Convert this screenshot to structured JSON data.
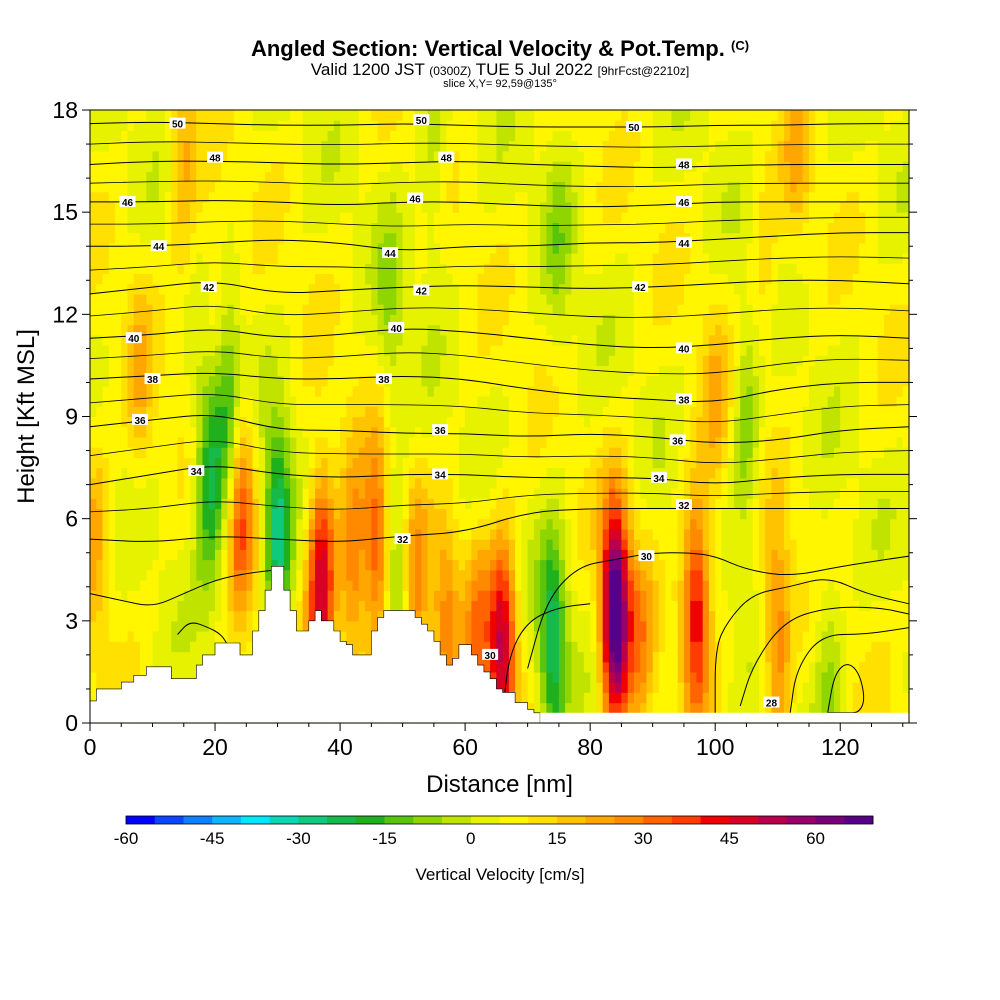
{
  "title": "Angled Section: Vertical Velocity & Pot.Temp.",
  "title_unit": "(C)",
  "subtitle_a": "Valid 1200 JST",
  "subtitle_utc": "(0300Z)",
  "subtitle_b": "TUE 5 Jul 2022",
  "subtitle_fcst": "[9hrFcst@2210z]",
  "slice_label": "slice X,Y= 92,59@135°",
  "colors": {
    "background": "#ffffff",
    "terrain": "#ffffff",
    "contour": "#000000"
  },
  "chart_data": {
    "type": "heatmap",
    "xlabel": "Distance [nm]",
    "ylabel": "Height [Kft MSL]",
    "xlim": [
      0,
      131
    ],
    "ylim": [
      0,
      18
    ],
    "xticks": [
      0,
      20,
      40,
      60,
      80,
      100,
      120
    ],
    "yticks": [
      0,
      3,
      6,
      9,
      12,
      15,
      18
    ],
    "colorbar": {
      "label": "Vertical Velocity [cm/s]",
      "range": [
        -60,
        70
      ],
      "step": 5,
      "ticks": [
        -60,
        -45,
        -30,
        -15,
        0,
        15,
        30,
        45,
        60
      ],
      "colors": [
        "#0000ff",
        "#0a46ff",
        "#0d7fff",
        "#0db6ff",
        "#00e8ff",
        "#0bd7b5",
        "#0fc97d",
        "#16b94a",
        "#20b01e",
        "#58c40c",
        "#8fd500",
        "#c0e400",
        "#e6f200",
        "#fff600",
        "#ffe000",
        "#ffc300",
        "#ffa600",
        "#ff8a00",
        "#ff6400",
        "#ff3c00",
        "#f00000",
        "#d80024",
        "#b8004c",
        "#98006c",
        "#78007c",
        "#580088"
      ]
    },
    "vertical_velocity_cores": [
      {
        "x": 1,
        "z": 5.5,
        "w": 15
      },
      {
        "x": 8,
        "z": 10,
        "w": 12
      },
      {
        "x": 15,
        "z": 16.5,
        "w": 15
      },
      {
        "x": 20,
        "z": 12,
        "w": 12
      },
      {
        "x": 19,
        "z": 7.5,
        "w": -30
      },
      {
        "x": 22,
        "z": 9,
        "w": -25
      },
      {
        "x": 24,
        "z": 6.5,
        "w": 30
      },
      {
        "x": 30,
        "z": 5.5,
        "w": -35
      },
      {
        "x": 37,
        "z": 4.2,
        "w": 45
      },
      {
        "x": 42,
        "z": 4.5,
        "w": 25
      },
      {
        "x": 46,
        "z": 5,
        "w": 30
      },
      {
        "x": 49,
        "z": 4,
        "w": -20
      },
      {
        "x": 52,
        "z": 3.8,
        "w": 20
      },
      {
        "x": 57,
        "z": 2.8,
        "w": 20
      },
      {
        "x": 62,
        "z": 2.8,
        "w": 20
      },
      {
        "x": 66,
        "z": 2.2,
        "w": 45
      },
      {
        "x": 74,
        "z": 2.3,
        "w": -30
      },
      {
        "x": 84,
        "z": 3.2,
        "w": 70
      },
      {
        "x": 88,
        "z": 2.2,
        "w": 18
      },
      {
        "x": 97,
        "z": 3.5,
        "w": 40
      },
      {
        "x": 105,
        "z": 8.5,
        "w": -15
      },
      {
        "x": 110,
        "z": 2.5,
        "w": 25
      },
      {
        "x": 118,
        "z": 2,
        "w": -12
      },
      {
        "x": 100,
        "z": 9,
        "w": 12
      },
      {
        "x": 108,
        "z": 13,
        "w": 8
      },
      {
        "x": 113,
        "z": 17,
        "w": 12
      },
      {
        "x": 55,
        "z": 16.5,
        "w": -10
      },
      {
        "x": 75,
        "z": 14,
        "w": -10
      },
      {
        "x": 48,
        "z": 12,
        "w": -10
      }
    ],
    "terrain_profile": {
      "x": [
        0,
        1,
        2,
        4,
        5,
        7,
        9,
        12,
        13,
        16,
        17,
        18,
        20,
        23,
        24,
        26,
        27,
        28,
        29,
        30,
        31,
        32,
        33,
        34,
        35,
        36,
        37,
        38,
        39,
        40,
        41,
        42,
        43,
        44,
        45,
        46,
        47,
        48,
        49,
        50,
        51,
        52,
        53,
        54,
        55,
        56,
        57,
        58,
        59,
        60,
        61,
        62,
        63,
        64,
        65,
        66,
        67,
        68,
        69,
        70,
        71,
        72
      ],
      "z": [
        0.65,
        1.0,
        1.0,
        1.0,
        1.2,
        1.4,
        1.65,
        1.65,
        1.3,
        1.3,
        1.7,
        2.0,
        2.35,
        2.35,
        2.0,
        2.7,
        3.3,
        3.9,
        4.6,
        4.6,
        3.9,
        3.3,
        2.7,
        2.7,
        3.0,
        3.3,
        3.0,
        3.0,
        2.7,
        2.4,
        2.3,
        2.0,
        2.0,
        2.0,
        2.7,
        3.1,
        3.3,
        3.3,
        3.3,
        3.3,
        3.3,
        3.1,
        2.9,
        2.7,
        2.4,
        2.0,
        1.7,
        1.9,
        2.3,
        2.3,
        2.0,
        1.7,
        1.5,
        1.3,
        1.0,
        0.9,
        0.9,
        0.6,
        0.6,
        0.4,
        0.3,
        0.3
      ]
    },
    "theta_contours": {
      "z_at_x": [
        0,
        10,
        20,
        30,
        40,
        50,
        60,
        70,
        80,
        90,
        100,
        110,
        120,
        131
      ],
      "levels": [
        {
          "value": 50,
          "z": [
            17.6,
            17.65,
            17.6,
            17.55,
            17.55,
            17.6,
            17.55,
            17.5,
            17.5,
            17.5,
            17.55,
            17.55,
            17.6,
            17.6
          ]
        },
        {
          "value": 48,
          "z": [
            16.4,
            16.5,
            16.5,
            16.45,
            16.4,
            16.45,
            16.5,
            16.4,
            16.35,
            16.3,
            16.35,
            16.4,
            16.4,
            16.4
          ]
        },
        {
          "value": 46,
          "z": [
            15.3,
            15.3,
            15.35,
            15.3,
            15.2,
            15.3,
            15.3,
            15.2,
            15.15,
            15.2,
            15.3,
            15.3,
            15.3,
            15.3
          ]
        },
        {
          "value": 44,
          "z": [
            14.0,
            14.0,
            14.1,
            14.2,
            14.1,
            13.85,
            14.0,
            14.0,
            14.1,
            14.1,
            14.2,
            14.3,
            14.4,
            14.4
          ]
        },
        {
          "value": 42,
          "z": [
            12.6,
            12.8,
            13.0,
            12.6,
            12.7,
            12.8,
            12.85,
            12.8,
            12.75,
            12.8,
            12.9,
            13.0,
            13.0,
            12.9
          ]
        },
        {
          "value": 40,
          "z": [
            11.3,
            11.4,
            11.6,
            11.3,
            11.4,
            11.6,
            11.5,
            11.3,
            11.1,
            11.0,
            11.1,
            11.3,
            11.4,
            11.3
          ]
        },
        {
          "value": 38,
          "z": [
            10.1,
            10.2,
            10.3,
            10.1,
            10.1,
            10.2,
            10.1,
            9.8,
            9.6,
            9.5,
            9.4,
            9.8,
            10.0,
            10.0
          ]
        },
        {
          "value": 36,
          "z": [
            8.7,
            8.9,
            9.1,
            8.6,
            8.6,
            8.5,
            8.5,
            8.4,
            8.5,
            8.4,
            8.2,
            8.3,
            8.6,
            8.7
          ]
        },
        {
          "value": 34,
          "z": [
            7.0,
            7.3,
            7.6,
            7.3,
            7.2,
            7.3,
            7.3,
            7.2,
            7.2,
            7.2,
            7.0,
            7.2,
            7.3,
            7.3
          ]
        },
        {
          "value": 32,
          "z": [
            5.4,
            5.3,
            5.5,
            5.4,
            5.3,
            5.5,
            5.6,
            6.2,
            6.3,
            6.3,
            6.3,
            6.3,
            6.3,
            6.3
          ]
        }
      ],
      "label_points": [
        {
          "value": 50,
          "x": 14,
          "z": 17.6
        },
        {
          "value": 50,
          "x": 53,
          "z": 17.7
        },
        {
          "value": 50,
          "x": 87,
          "z": 17.5
        },
        {
          "value": 48,
          "x": 20,
          "z": 16.6
        },
        {
          "value": 48,
          "x": 57,
          "z": 16.6
        },
        {
          "value": 48,
          "x": 95,
          "z": 16.4
        },
        {
          "value": 46,
          "x": 6,
          "z": 15.3
        },
        {
          "value": 46,
          "x": 52,
          "z": 15.4
        },
        {
          "value": 46,
          "x": 95,
          "z": 15.3
        },
        {
          "value": 44,
          "x": 11,
          "z": 14.0
        },
        {
          "value": 44,
          "x": 48,
          "z": 13.8
        },
        {
          "value": 44,
          "x": 95,
          "z": 14.1
        },
        {
          "value": 42,
          "x": 19,
          "z": 12.8
        },
        {
          "value": 42,
          "x": 53,
          "z": 12.7
        },
        {
          "value": 42,
          "x": 88,
          "z": 12.8
        },
        {
          "value": 40,
          "x": 7,
          "z": 11.3
        },
        {
          "value": 40,
          "x": 49,
          "z": 11.6
        },
        {
          "value": 40,
          "x": 95,
          "z": 11.0
        },
        {
          "value": 38,
          "x": 10,
          "z": 10.1
        },
        {
          "value": 38,
          "x": 47,
          "z": 10.1
        },
        {
          "value": 38,
          "x": 95,
          "z": 9.5
        },
        {
          "value": 36,
          "x": 8,
          "z": 8.9
        },
        {
          "value": 36,
          "x": 56,
          "z": 8.6
        },
        {
          "value": 36,
          "x": 94,
          "z": 8.3
        },
        {
          "value": 34,
          "x": 17,
          "z": 7.4
        },
        {
          "value": 34,
          "x": 56,
          "z": 7.3
        },
        {
          "value": 34,
          "x": 91,
          "z": 7.2
        },
        {
          "value": 32,
          "x": 50,
          "z": 5.4
        },
        {
          "value": 32,
          "x": 95,
          "z": 6.4
        },
        {
          "value": 30,
          "x": 89,
          "z": 4.9
        },
        {
          "value": 30,
          "x": 64,
          "z": 2.0
        },
        {
          "value": 28,
          "x": 109,
          "z": 0.6
        }
      ],
      "lower_contours": [
        {
          "x": [
            70,
            73,
            78,
            84,
            90,
            96,
            100,
            105,
            112,
            120,
            131
          ],
          "z": [
            1.6,
            3.6,
            4.6,
            4.8,
            5.0,
            5.0,
            4.9,
            4.5,
            4.3,
            4.6,
            4.9
          ]
        },
        {
          "x": [
            66,
            67,
            70,
            75,
            80
          ],
          "z": [
            0.3,
            2.0,
            3.0,
            3.4,
            3.5
          ]
        },
        {
          "x": [
            100,
            100,
            102,
            106,
            112,
            118,
            124,
            131
          ],
          "z": [
            0.3,
            2.2,
            3.0,
            3.8,
            4.0,
            4.3,
            3.8,
            3.5
          ]
        },
        {
          "x": [
            104,
            106,
            111,
            118,
            126,
            131
          ],
          "z": [
            0.5,
            1.7,
            3.0,
            3.4,
            3.4,
            3.2
          ]
        },
        {
          "x": [
            112,
            113,
            117,
            124,
            131
          ],
          "z": [
            0.3,
            1.6,
            2.6,
            2.6,
            2.8
          ]
        },
        {
          "x": [
            118,
            119,
            121,
            123,
            124,
            123,
            121,
            119,
            118
          ],
          "z": [
            0.3,
            1.4,
            1.8,
            1.5,
            0.7,
            0.3,
            0.3,
            0.3,
            0.3
          ]
        },
        {
          "x": [
            0,
            5,
            10,
            15,
            20,
            25,
            30
          ],
          "z": [
            3.8,
            3.6,
            3.4,
            3.8,
            4.2,
            4.4,
            4.5
          ]
        },
        {
          "x": [
            14,
            16,
            19,
            21,
            22
          ],
          "z": [
            2.6,
            3.0,
            2.8,
            2.6,
            2.3
          ]
        }
      ]
    }
  }
}
